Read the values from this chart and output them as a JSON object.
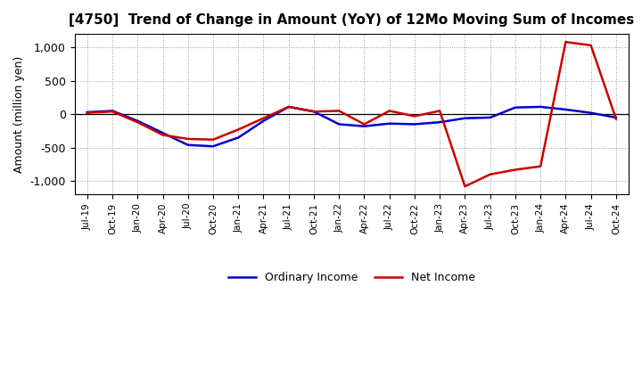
{
  "title": "[4750]  Trend of Change in Amount (YoY) of 12Mo Moving Sum of Incomes",
  "ylabel": "Amount (million yen)",
  "ylim": [
    -1200,
    1200
  ],
  "yticks": [
    -1000,
    -500,
    0,
    500,
    1000
  ],
  "ytick_labels": [
    "-1,000",
    "-500",
    "0",
    "500",
    "1,000"
  ],
  "background_color": "#ffffff",
  "ordinary_income_color": "#0000cc",
  "net_income_color": "#cc0000",
  "line_width": 1.8,
  "x_labels": [
    "Jul-19",
    "Oct-19",
    "Jan-20",
    "Apr-20",
    "Jul-20",
    "Oct-20",
    "Jan-21",
    "Apr-21",
    "Jul-21",
    "Oct-21",
    "Jan-22",
    "Apr-22",
    "Jul-22",
    "Oct-22",
    "Jan-23",
    "Apr-23",
    "Jul-23",
    "Oct-23",
    "Jan-24",
    "Apr-24",
    "Jul-24",
    "Oct-24"
  ],
  "ordinary_income": [
    30,
    50,
    -100,
    -280,
    -460,
    -480,
    -350,
    -100,
    110,
    40,
    -150,
    -180,
    -140,
    -150,
    -120,
    -60,
    -50,
    100,
    110,
    70,
    20,
    -50
  ],
  "net_income": [
    20,
    40,
    -120,
    -310,
    -370,
    -380,
    -230,
    -60,
    110,
    40,
    50,
    -150,
    50,
    -30,
    50,
    -1080,
    -900,
    -830,
    -780,
    1080,
    1030,
    -70
  ]
}
